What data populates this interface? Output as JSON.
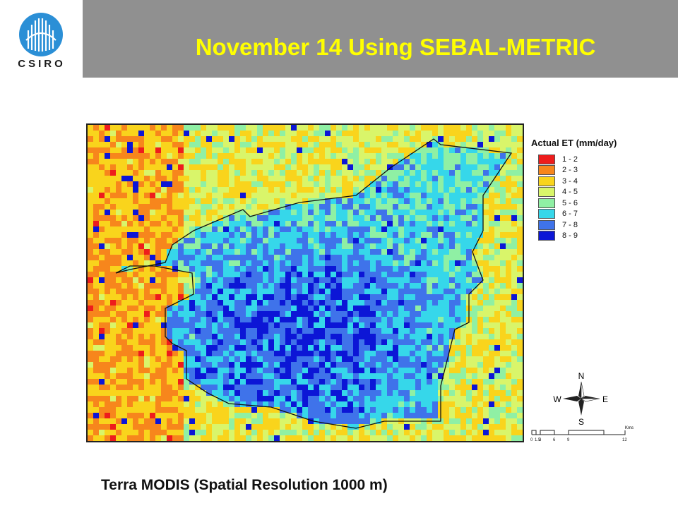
{
  "header": {
    "title": "November 14 Using SEBAL-METRIC",
    "logo_text": "CSIRO"
  },
  "legend": {
    "title": "Actual ET (mm/day)",
    "items": [
      {
        "label": "1 - 2",
        "color": "#ee1c1c"
      },
      {
        "label": "2 - 3",
        "color": "#f7861c"
      },
      {
        "label": "3 - 4",
        "color": "#f9d41c"
      },
      {
        "label": "4 - 5",
        "color": "#d9f56a"
      },
      {
        "label": "5 - 6",
        "color": "#8ff0a4"
      },
      {
        "label": "6 - 7",
        "color": "#36d7ea"
      },
      {
        "label": "7 - 8",
        "color": "#3f73ea"
      },
      {
        "label": "8 - 9",
        "color": "#0c16d6"
      }
    ]
  },
  "compass": {
    "n": "N",
    "s": "S",
    "e": "E",
    "w": "W"
  },
  "scale": {
    "ticks": [
      "0",
      "1.5",
      "3",
      "6",
      "9",
      "12"
    ],
    "unit": "Kms"
  },
  "caption": "Terra MODIS (Spatial Resolution 1000 m)"
}
